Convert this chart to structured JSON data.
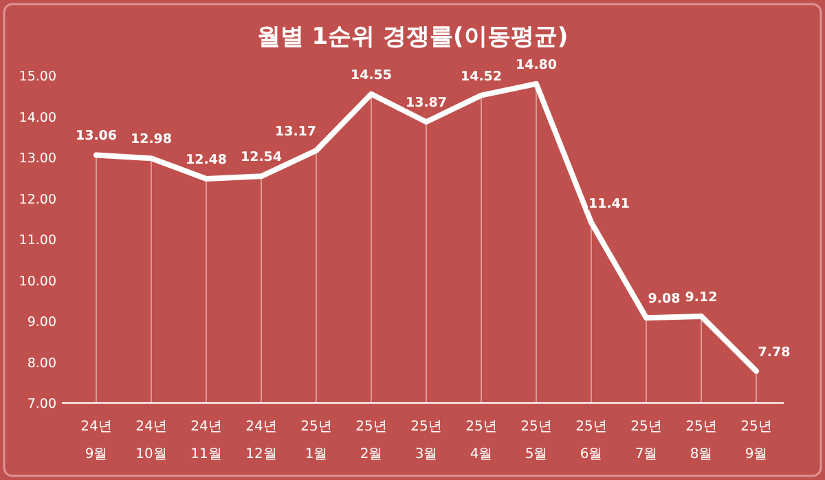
{
  "chart_data": {
    "type": "line",
    "title": "월별 1순위 경쟁률(이동평균)",
    "categories": [
      "24년 9월",
      "24년 10월",
      "24년 11월",
      "24년 12월",
      "25년 1월",
      "25년 2월",
      "25년 3월",
      "25년 4월",
      "25년 5월",
      "25년 6월",
      "25년 7월",
      "25년 8월",
      "25년 9월"
    ],
    "series": [
      {
        "color": "#ffffff",
        "values": [
          13.06,
          12.98,
          12.48,
          12.54,
          13.17,
          14.55,
          13.87,
          14.52,
          14.8,
          11.41,
          9.08,
          9.12,
          7.78
        ],
        "value_labels": [
          "13.06",
          "12.98",
          "12.48",
          "12.54",
          "13.17",
          "14.55",
          "13.87",
          "14.52",
          "14.80",
          "11.41",
          "9.08",
          "9.12",
          "7.78"
        ]
      }
    ],
    "ylim": [
      7,
      15
    ],
    "yticks": [
      {
        "value": 7,
        "label": "7.00"
      },
      {
        "value": 8,
        "label": "8.00"
      },
      {
        "value": 9,
        "label": "9.00"
      },
      {
        "value": 10,
        "label": "10.00"
      },
      {
        "value": 11,
        "label": "11.00"
      },
      {
        "value": 12,
        "label": "12.00"
      },
      {
        "value": 13,
        "label": "13.00"
      },
      {
        "value": 14,
        "label": "14.00"
      },
      {
        "value": 15,
        "label": "15.00"
      }
    ],
    "grid": "x",
    "marker": "none",
    "line_style": "solid"
  }
}
